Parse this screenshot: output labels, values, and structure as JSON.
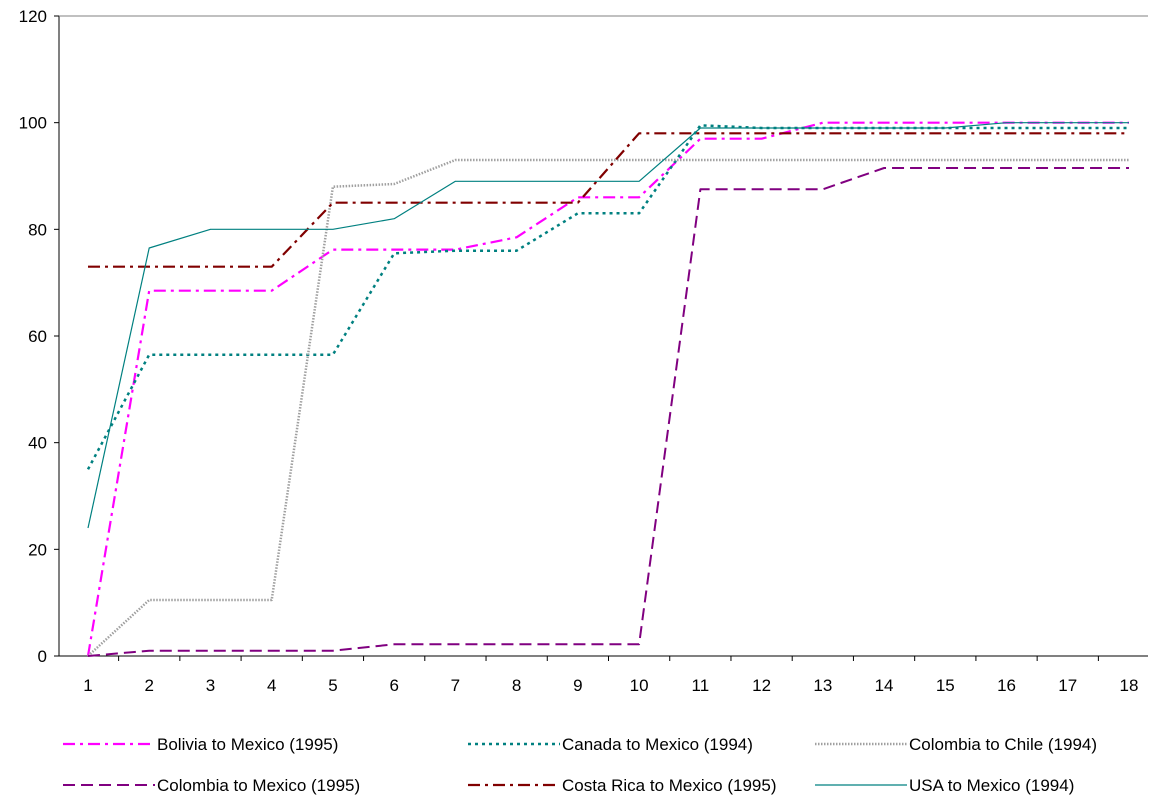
{
  "chart_data": {
    "type": "line",
    "title": "",
    "xlabel": "",
    "ylabel": "",
    "x": [
      1,
      2,
      3,
      4,
      5,
      6,
      7,
      8,
      9,
      10,
      11,
      12,
      13,
      14,
      15,
      16,
      17,
      18
    ],
    "x_tick_labels": [
      "1",
      "2",
      "3",
      "4",
      "5",
      "6",
      "7",
      "8",
      "9",
      "10",
      "11",
      "12",
      "13",
      "14",
      "15",
      "16",
      "17",
      "18"
    ],
    "ylim": [
      0,
      120
    ],
    "y_ticks": [
      0,
      20,
      40,
      60,
      80,
      100,
      120
    ],
    "y_tick_labels": [
      "0",
      "20",
      "40",
      "60",
      "80",
      "100",
      "120"
    ],
    "grid": false,
    "legend_position": "bottom",
    "series": [
      {
        "name": "Bolivia to Mexico (1995)",
        "color": "#ff00ff",
        "style": "dash-dot",
        "values": [
          0,
          68.5,
          68.5,
          68.5,
          76.2,
          76.2,
          76.2,
          78.5,
          86,
          86,
          97,
          97,
          100,
          100,
          100,
          100,
          100,
          100
        ]
      },
      {
        "name": "Canada to Mexico (1994)",
        "color": "#008080",
        "style": "dotted",
        "values": [
          35,
          56.5,
          56.5,
          56.5,
          56.5,
          75.5,
          76,
          76,
          83,
          83,
          99.5,
          99,
          99,
          99,
          99,
          99,
          99,
          99
        ]
      },
      {
        "name": "Colombia to Chile (1994)",
        "color": "#a0a0a0",
        "style": "hatched",
        "values": [
          0,
          10.5,
          10.5,
          10.5,
          88,
          88.5,
          93,
          93,
          93,
          93,
          93,
          93,
          93,
          93,
          93,
          93,
          93,
          93
        ]
      },
      {
        "name": "Colombia to Mexico (1995)",
        "color": "#800080",
        "style": "dashed",
        "values": [
          0,
          1,
          1,
          1,
          1,
          2.2,
          2.2,
          2.2,
          2.2,
          2.2,
          87.5,
          87.5,
          87.5,
          91.5,
          91.5,
          91.5,
          91.5,
          91.5
        ]
      },
      {
        "name": "Costa Rica to Mexico (1995)",
        "color": "#800000",
        "style": "dash-dot",
        "values": [
          73,
          73,
          73,
          73,
          85,
          85,
          85,
          85,
          85,
          98,
          98,
          98,
          98,
          98,
          98,
          98,
          98,
          98
        ]
      },
      {
        "name": "USA to Mexico (1994)",
        "color": "#008080",
        "style": "solid",
        "values": [
          24,
          76.5,
          80,
          80,
          80,
          82,
          89,
          89,
          89,
          89,
          99,
          99,
          99,
          99,
          99,
          100,
          100,
          100
        ]
      }
    ]
  }
}
